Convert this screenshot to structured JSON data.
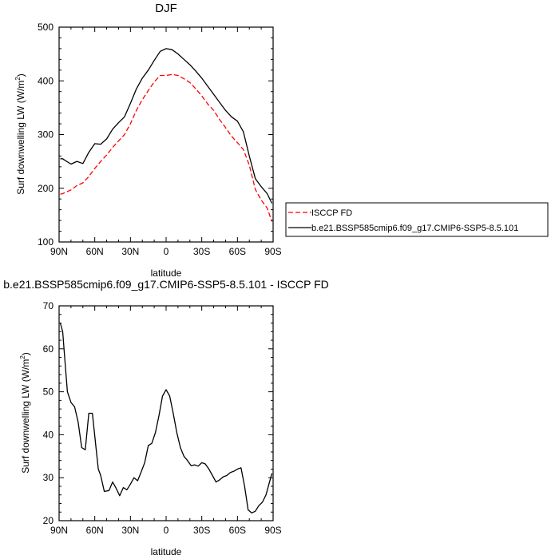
{
  "chart_data": [
    {
      "type": "line",
      "title": "DJF",
      "xlabel": "latitude",
      "ylabel_main": "Surf downwelling LW (W/m",
      "ylabel_sup": "2",
      "ylabel_close": ")",
      "xlim": [
        -90,
        90
      ],
      "ylim": [
        100,
        500
      ],
      "x_ticks": [
        {
          "value": -90,
          "label": "90N"
        },
        {
          "value": -60,
          "label": "60N"
        },
        {
          "value": -30,
          "label": "30N"
        },
        {
          "value": 0,
          "label": "0"
        },
        {
          "value": 30,
          "label": "30S"
        },
        {
          "value": 60,
          "label": "60S"
        },
        {
          "value": 90,
          "label": "90S"
        }
      ],
      "y_ticks": [
        100,
        200,
        300,
        400,
        500
      ],
      "legend_placement": "right",
      "grid": false,
      "series": [
        {
          "name": "ISCCP FD",
          "color": "#ff0000",
          "dash": "dashed",
          "x": [
            -89,
            -87,
            -85,
            -80,
            -75,
            -70,
            -65,
            -60,
            -55,
            -50,
            -45,
            -40,
            -35,
            -30,
            -25,
            -20,
            -15,
            -10,
            -5,
            0,
            5,
            10,
            15,
            20,
            25,
            30,
            35,
            40,
            45,
            50,
            55,
            60,
            65,
            70,
            75,
            80,
            85,
            89
          ],
          "y": [
            189,
            190,
            192,
            197,
            205,
            210,
            222,
            237,
            250,
            262,
            276,
            288,
            300,
            320,
            345,
            365,
            382,
            398,
            410,
            410,
            412,
            410,
            404,
            397,
            385,
            372,
            357,
            345,
            328,
            313,
            297,
            285,
            272,
            243,
            198,
            178,
            163,
            138
          ]
        },
        {
          "name": "b.e21.BSSP585cmip6.f09_g17.CMIP6-SSP5-8.5.101",
          "color": "#000000",
          "dash": "solid",
          "x": [
            -89,
            -87,
            -85,
            -80,
            -75,
            -70,
            -65,
            -60,
            -55,
            -50,
            -45,
            -40,
            -35,
            -30,
            -25,
            -20,
            -15,
            -10,
            -5,
            0,
            5,
            10,
            15,
            20,
            25,
            30,
            35,
            40,
            45,
            50,
            55,
            60,
            65,
            70,
            75,
            80,
            85,
            89
          ],
          "y": [
            255,
            255,
            252,
            245,
            250,
            246,
            267,
            283,
            282,
            292,
            310,
            322,
            333,
            358,
            385,
            405,
            420,
            438,
            455,
            460,
            458,
            450,
            440,
            430,
            418,
            405,
            390,
            375,
            360,
            345,
            333,
            325,
            305,
            260,
            218,
            203,
            190,
            172
          ]
        }
      ]
    },
    {
      "type": "line",
      "title": "b.e21.BSSP585cmip6.f09_g17.CMIP6-SSP5-8.5.101 - ISCCP FD",
      "xlabel": "latitude",
      "ylabel_main": "Surf downwelling LW (W/m",
      "ylabel_sup": "2",
      "ylabel_close": ")",
      "xlim": [
        -90,
        90
      ],
      "ylim": [
        20,
        70
      ],
      "x_ticks": [
        {
          "value": -90,
          "label": "90N"
        },
        {
          "value": -60,
          "label": "60N"
        },
        {
          "value": -30,
          "label": "30N"
        },
        {
          "value": 0,
          "label": "0"
        },
        {
          "value": 30,
          "label": "30S"
        },
        {
          "value": 60,
          "label": "60S"
        },
        {
          "value": 90,
          "label": "90S"
        }
      ],
      "y_ticks": [
        20,
        30,
        40,
        50,
        60,
        70
      ],
      "grid": false,
      "series": [
        {
          "color": "#000000",
          "dash": "solid",
          "x": [
            -89,
            -87,
            -85,
            -83,
            -80,
            -77,
            -74,
            -71,
            -68,
            -65,
            -62,
            -59,
            -57,
            -55,
            -52,
            -48,
            -45,
            -42,
            -39,
            -36,
            -33,
            -30,
            -27,
            -24,
            -21,
            -18,
            -15,
            -12,
            -9,
            -6,
            -3,
            0,
            3,
            6,
            9,
            12,
            15,
            18,
            21,
            24,
            27,
            30,
            33,
            36,
            39,
            42,
            45,
            48,
            51,
            54,
            57,
            60,
            63,
            66,
            69,
            72,
            75,
            78,
            81,
            84,
            87,
            89
          ],
          "y": [
            66,
            64,
            57,
            50,
            47.5,
            46.5,
            43,
            37,
            36.5,
            45,
            45,
            37,
            32,
            30.5,
            26.8,
            27,
            29,
            27.5,
            25.8,
            27.7,
            27.2,
            28.5,
            30,
            29.3,
            31.3,
            33.5,
            37.5,
            38,
            40.5,
            44.5,
            49,
            50.5,
            49,
            45,
            40.5,
            37,
            35,
            34,
            32.8,
            33,
            32.7,
            33.5,
            33.2,
            32,
            30.5,
            29,
            29.5,
            30.2,
            30.5,
            31.2,
            31.5,
            32,
            32.3,
            28,
            22.5,
            21.8,
            22.2,
            23.5,
            24.3,
            26,
            29,
            31
          ]
        }
      ]
    }
  ]
}
